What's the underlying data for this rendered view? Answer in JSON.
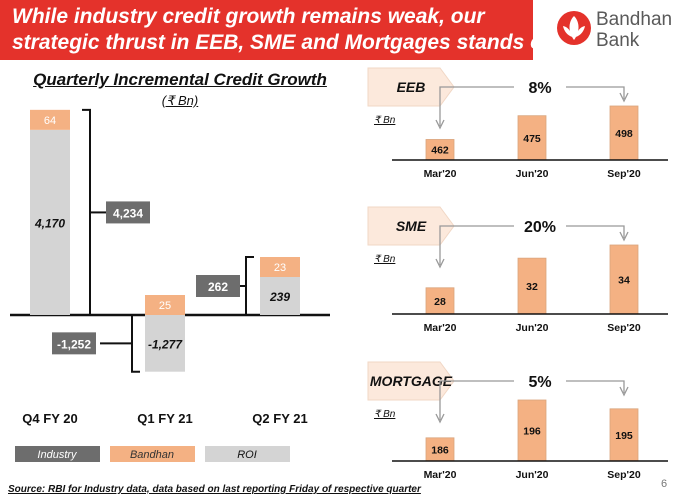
{
  "header": {
    "line1": "While industry credit growth remains weak, our",
    "line2": "strategic thrust in EEB, SME and Mortgages stands out"
  },
  "logo": {
    "word1": "Bandhan",
    "word2": "Bank"
  },
  "colors": {
    "red": "#e4322b",
    "industry": "#6d6d6d",
    "bandhan": "#f4b183",
    "roi": "#d4d4d4",
    "border": "#d9a57d"
  },
  "chart_data": [
    {
      "type": "bar",
      "title": "Quarterly Incremental Credit Growth",
      "unit": "(₹ Bn)",
      "categories": [
        "Q4 FY 20",
        "Q1 FY 21",
        "Q2 FY 21"
      ],
      "series": [
        {
          "name": "Bandhan",
          "values": [
            64,
            25,
            23
          ]
        },
        {
          "name": "ROI",
          "values": [
            4170,
            -1277,
            239
          ]
        },
        {
          "name": "Industry",
          "values": [
            4234,
            -1252,
            262
          ]
        }
      ],
      "data_labels": {
        "bandhan": [
          "64",
          "25",
          "23"
        ],
        "roi": [
          "4,170",
          "-1,277",
          "239"
        ],
        "industry": [
          "4,234",
          "-1,252",
          "262"
        ]
      },
      "legend": [
        "Industry",
        "Bandhan",
        "ROI"
      ],
      "legend_position": "bottom",
      "axis_max": 4234,
      "axis_min": -1277
    },
    {
      "type": "bar",
      "title": "EEB",
      "unit": "₹ Bn",
      "categories": [
        "Mar'20",
        "Jun'20",
        "Sep'20"
      ],
      "values": [
        462,
        475,
        498
      ],
      "labels": [
        "462",
        "475",
        "498"
      ],
      "growth": "8%",
      "ylim": [
        0,
        498
      ]
    },
    {
      "type": "bar",
      "title": "SME",
      "unit": "₹ Bn",
      "categories": [
        "Mar'20",
        "Jun'20",
        "Sep'20"
      ],
      "values": [
        28,
        32,
        34
      ],
      "labels": [
        "28",
        "32",
        "34"
      ],
      "growth": "20%",
      "ylim": [
        0,
        34
      ]
    },
    {
      "type": "bar",
      "title": "MORTGAGE",
      "unit": "₹ Bn",
      "categories": [
        "Mar'20",
        "Jun'20",
        "Sep'20"
      ],
      "values": [
        186,
        196,
        195
      ],
      "labels": [
        "186",
        "196",
        "195"
      ],
      "growth": "5%",
      "ylim": [
        0,
        196
      ]
    }
  ],
  "footer": "Source: RBI for Industry data, data based on last reporting Friday of respective quarter",
  "page_number": "6"
}
